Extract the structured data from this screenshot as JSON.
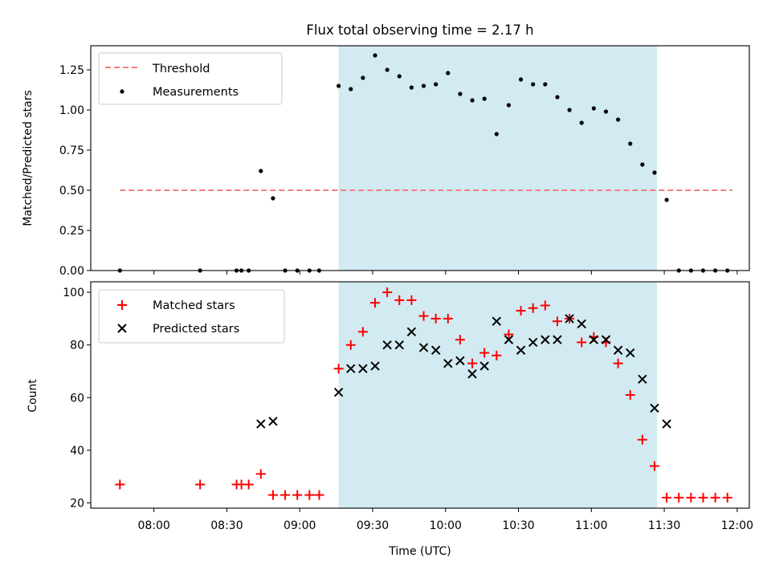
{
  "title": "Flux total observing time = 2.17 h",
  "colors": {
    "threshold": "#f08080",
    "measurement": "#000000",
    "matched": "#ff0000",
    "predicted": "#000000",
    "span": "#add8e6"
  },
  "chart_data": [
    {
      "type": "scatter",
      "title": "Flux total observing time = 2.17 h",
      "xlabel": "",
      "ylabel": "Matched/Predicted stars",
      "xlim": [
        "07:34",
        "12:05"
      ],
      "ylim": [
        0,
        1.4
      ],
      "yticks": [
        0.0,
        0.25,
        0.5,
        0.75,
        1.0,
        1.25
      ],
      "ytick_labels": [
        "0.00",
        "0.25",
        "0.50",
        "0.75",
        "1.00",
        "1.25"
      ],
      "shaded_span": [
        "09:16",
        "11:27"
      ],
      "legend": {
        "position": "upper-left",
        "entries": [
          "Threshold",
          "Measurements"
        ]
      },
      "threshold": {
        "name": "Threshold",
        "value": 0.5,
        "x": [
          "07:46",
          "11:58"
        ]
      },
      "series": [
        {
          "name": "Measurements",
          "x": [
            "07:46",
            "08:19",
            "08:34",
            "08:36",
            "08:39",
            "08:44",
            "08:49",
            "08:54",
            "08:59",
            "09:04",
            "09:08",
            "09:16",
            "09:21",
            "09:26",
            "09:31",
            "09:36",
            "09:41",
            "09:46",
            "09:51",
            "09:56",
            "10:01",
            "10:06",
            "10:11",
            "10:16",
            "10:21",
            "10:26",
            "10:31",
            "10:36",
            "10:41",
            "10:46",
            "10:51",
            "10:56",
            "11:01",
            "11:06",
            "11:11",
            "11:16",
            "11:21",
            "11:26",
            "11:31",
            "11:36",
            "11:41",
            "11:46",
            "11:51",
            "11:56"
          ],
          "y": [
            0.0,
            0.0,
            0.0,
            0.0,
            0.0,
            0.62,
            0.45,
            0.0,
            0.0,
            0.0,
            0.0,
            1.15,
            1.13,
            1.2,
            1.34,
            1.25,
            1.21,
            1.14,
            1.15,
            1.16,
            1.23,
            1.1,
            1.06,
            1.07,
            0.85,
            1.03,
            1.19,
            1.16,
            1.16,
            1.08,
            1.0,
            0.92,
            1.01,
            0.99,
            0.94,
            0.79,
            0.66,
            0.61,
            0.44,
            0.0,
            0.0,
            0.0,
            0.0,
            0.0
          ]
        }
      ]
    },
    {
      "type": "scatter",
      "xlabel": "Time (UTC)",
      "ylabel": "Count",
      "xlim": [
        "07:34",
        "12:05"
      ],
      "ylim": [
        18,
        104
      ],
      "yticks": [
        20,
        40,
        60,
        80,
        100
      ],
      "xticks": [
        "08:00",
        "08:30",
        "09:00",
        "09:30",
        "10:00",
        "10:30",
        "11:00",
        "11:30",
        "12:00"
      ],
      "shaded_span": [
        "09:16",
        "11:27"
      ],
      "legend": {
        "position": "upper-left",
        "entries": [
          "Matched stars",
          "Predicted stars"
        ]
      },
      "series": [
        {
          "name": "Matched stars",
          "x": [
            "07:46",
            "08:19",
            "08:34",
            "08:36",
            "08:39",
            "08:44",
            "08:49",
            "08:54",
            "08:59",
            "09:04",
            "09:08",
            "09:16",
            "09:21",
            "09:26",
            "09:31",
            "09:36",
            "09:41",
            "09:46",
            "09:51",
            "09:56",
            "10:01",
            "10:06",
            "10:11",
            "10:16",
            "10:21",
            "10:26",
            "10:31",
            "10:36",
            "10:41",
            "10:46",
            "10:51",
            "10:56",
            "11:01",
            "11:06",
            "11:11",
            "11:16",
            "11:21",
            "11:26",
            "11:31",
            "11:36",
            "11:41",
            "11:46",
            "11:51",
            "11:56"
          ],
          "y": [
            27,
            27,
            27,
            27,
            27,
            31,
            23,
            23,
            23,
            23,
            23,
            71,
            80,
            85,
            96,
            100,
            97,
            97,
            91,
            90,
            90,
            82,
            73,
            77,
            76,
            84,
            93,
            94,
            95,
            89,
            90,
            81,
            83,
            81,
            73,
            61,
            44,
            34,
            22,
            22,
            22,
            22,
            22,
            22
          ]
        },
        {
          "name": "Predicted stars",
          "x": [
            "08:44",
            "08:49",
            "09:16",
            "09:21",
            "09:26",
            "09:31",
            "09:36",
            "09:41",
            "09:46",
            "09:51",
            "09:56",
            "10:01",
            "10:06",
            "10:11",
            "10:16",
            "10:21",
            "10:26",
            "10:31",
            "10:36",
            "10:41",
            "10:46",
            "10:51",
            "10:56",
            "11:01",
            "11:06",
            "11:11",
            "11:16",
            "11:21",
            "11:26",
            "11:31"
          ],
          "y": [
            50,
            51,
            62,
            71,
            71,
            72,
            80,
            80,
            85,
            79,
            78,
            73,
            74,
            69,
            72,
            89,
            82,
            78,
            81,
            82,
            82,
            90,
            88,
            82,
            82,
            78,
            77,
            67,
            56,
            50
          ]
        }
      ]
    }
  ]
}
